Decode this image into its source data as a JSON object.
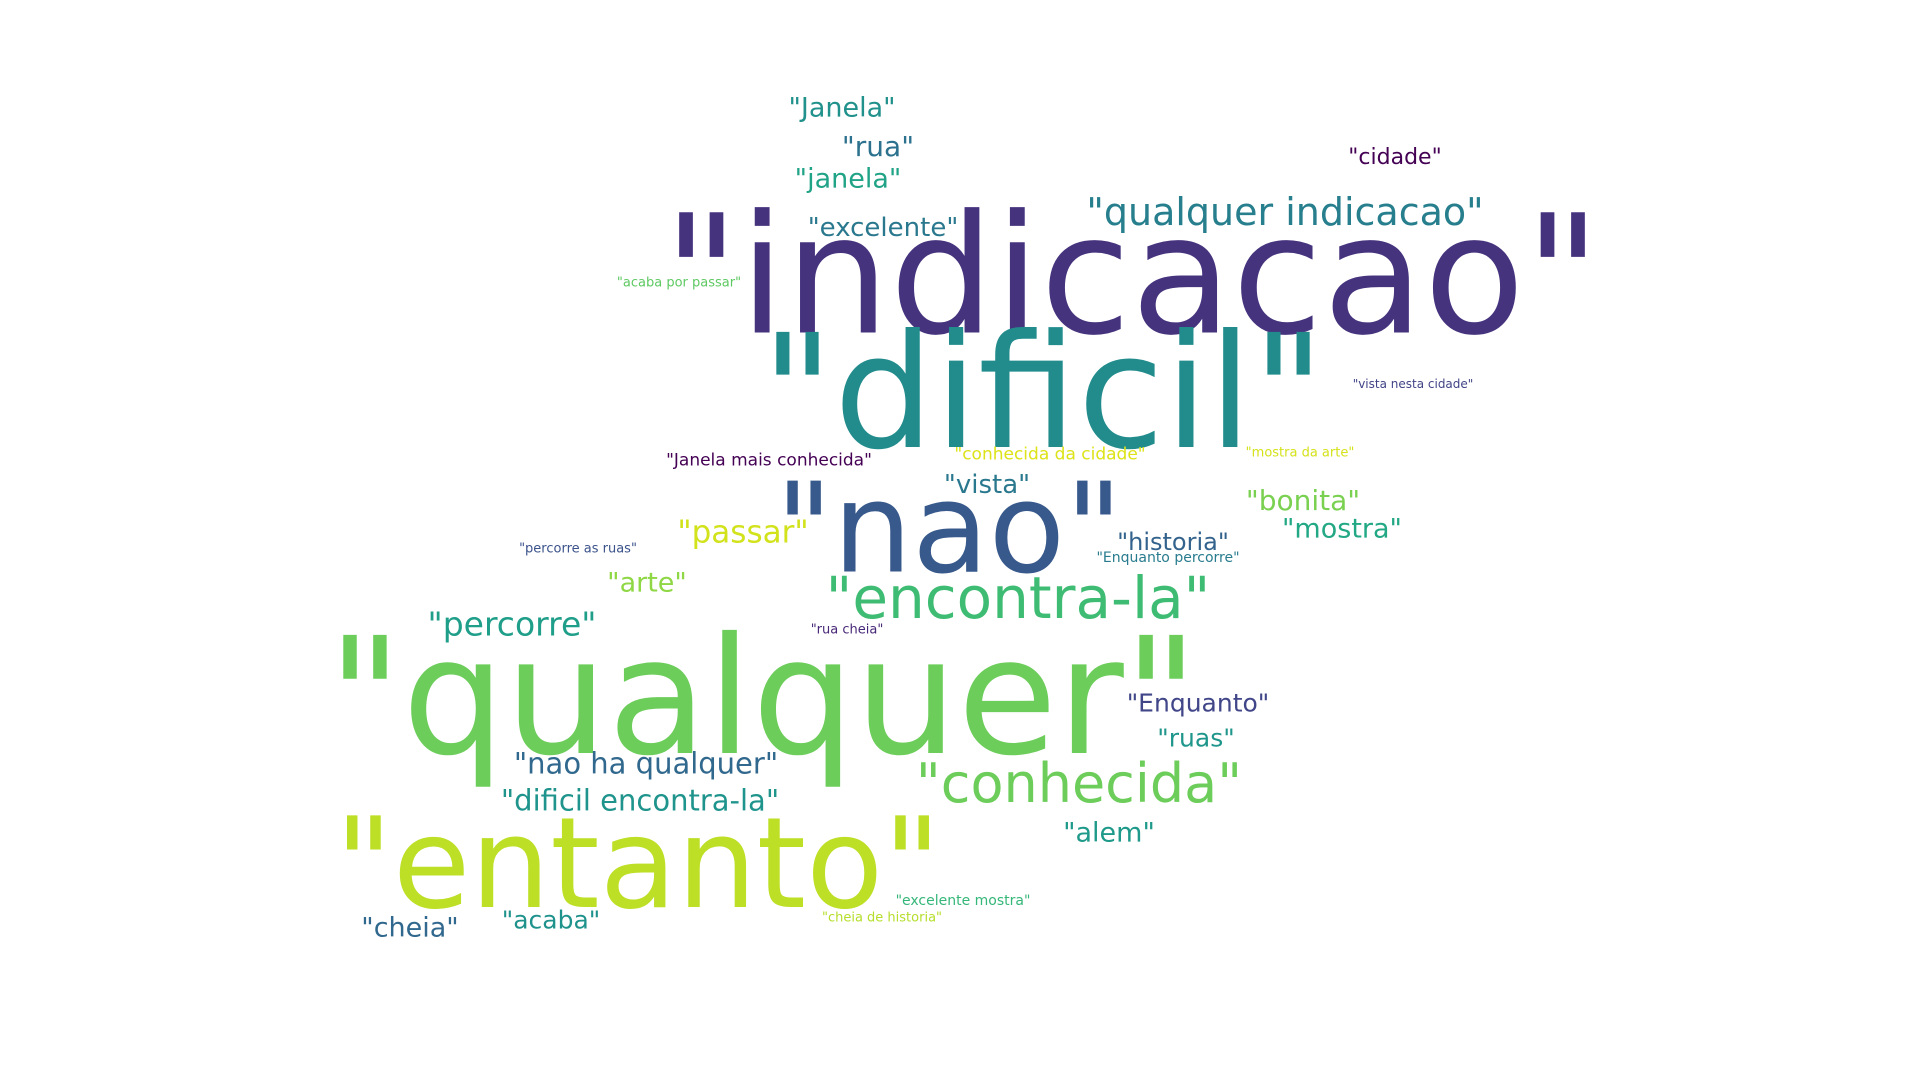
{
  "words": [
    {
      "text": "\"indicacao\"",
      "color": "#46337e"
    },
    {
      "text": "\"dificil\"",
      "color": "#228c8d"
    },
    {
      "text": "\"nao\"",
      "color": "#38598c"
    },
    {
      "text": "\"qualquer\"",
      "color": "#6ccd5a"
    },
    {
      "text": "\"entanto\"",
      "color": "#bddf26"
    },
    {
      "text": "\"encontra-la\"",
      "color": "#3fbc73"
    },
    {
      "text": "\"conhecida\"",
      "color": "#6ccd5a"
    },
    {
      "text": "\"qualquer indicacao\"",
      "color": "#277f8e"
    },
    {
      "text": "\"Janela\"",
      "color": "#21918c"
    },
    {
      "text": "\"rua\"",
      "color": "#2c728e"
    },
    {
      "text": "\"janela\"",
      "color": "#20a386"
    },
    {
      "text": "\"excelente\"",
      "color": "#2a788e"
    },
    {
      "text": "\"cidade\"",
      "color": "#440154"
    },
    {
      "text": "\"acaba por passar\"",
      "color": "#5ec962"
    },
    {
      "text": "\"vista nesta cidade\"",
      "color": "#414487"
    },
    {
      "text": "\"Janela mais conhecida\"",
      "color": "#440154"
    },
    {
      "text": "\"conhecida da cidade\"",
      "color": "#dde318"
    },
    {
      "text": "\"mostra da arte\"",
      "color": "#d5e21a"
    },
    {
      "text": "\"vista\"",
      "color": "#2a788e"
    },
    {
      "text": "\"bonita\"",
      "color": "#7ad151"
    },
    {
      "text": "\"mostra\"",
      "color": "#22a884"
    },
    {
      "text": "\"passar\"",
      "color": "#d2e21b"
    },
    {
      "text": "\"historia\"",
      "color": "#33638d"
    },
    {
      "text": "\"Enquanto percorre\"",
      "color": "#287c8e"
    },
    {
      "text": "\"percorre as ruas\"",
      "color": "#3b528b"
    },
    {
      "text": "\"arte\"",
      "color": "#8fd744"
    },
    {
      "text": "\"percorre\"",
      "color": "#1f9e89"
    },
    {
      "text": "\"rua cheia\"",
      "color": "#482878"
    },
    {
      "text": "\"Enquanto\"",
      "color": "#404688"
    },
    {
      "text": "\"ruas\"",
      "color": "#1f968b"
    },
    {
      "text": "\"nao ha qualquer\"",
      "color": "#31688e"
    },
    {
      "text": "\"dificil encontra-la\"",
      "color": "#1f948c"
    },
    {
      "text": "\"alem\"",
      "color": "#1f9a8a"
    },
    {
      "text": "\"excelente mostra\"",
      "color": "#35b779"
    },
    {
      "text": "\"cheia de historia\"",
      "color": "#b5de2b"
    },
    {
      "text": "\"cheia\"",
      "color": "#31688e"
    },
    {
      "text": "\"acaba\"",
      "color": "#20928c"
    }
  ]
}
